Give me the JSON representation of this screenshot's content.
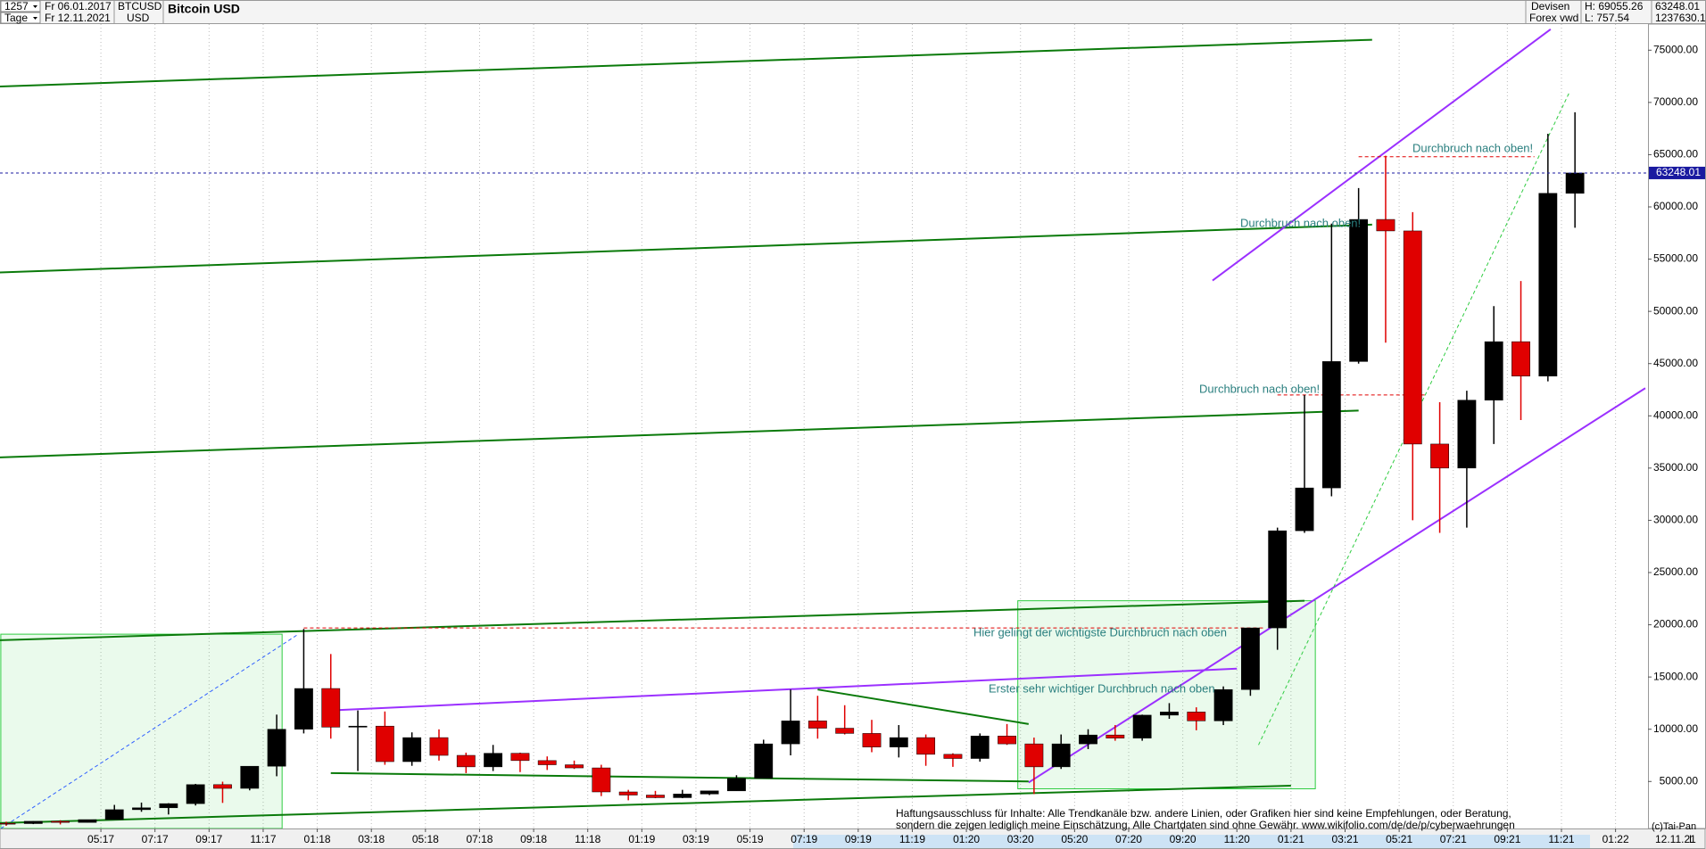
{
  "header": {
    "count": "1257",
    "from": "Fr 06.01.2017",
    "period": "Tage",
    "to": "Fr 12.11.2021",
    "symbol": "BTCUSD",
    "currency": "USD",
    "market": "Devisen",
    "source": "Forex vwd",
    "high": "H: 69055.26",
    "low": "L: 757.54",
    "last": "63248.01",
    "volume": "1237630.1"
  },
  "footer": {
    "copyright": "(c)Tai-Pan",
    "date": "12.11.21",
    "scale": "L"
  },
  "chart_data": {
    "type": "candlestick",
    "title": "Bitcoin USD",
    "x": [
      0,
      1,
      2,
      3,
      4,
      5,
      6,
      7,
      8,
      9,
      10,
      11,
      12,
      13,
      14,
      15,
      16,
      17,
      18,
      19,
      20,
      21,
      22,
      23,
      24,
      25,
      26,
      27,
      28,
      29,
      30,
      31,
      32,
      33,
      34,
      35,
      36,
      37,
      38,
      39,
      40,
      41,
      42,
      43,
      44,
      45,
      46,
      47,
      48,
      49,
      50,
      51,
      52,
      53,
      54,
      55,
      56,
      57,
      58
    ],
    "open": [
      1000,
      970,
      1190,
      1080,
      1350,
      2300,
      2480,
      2880,
      4700,
      4340,
      6460,
      10000,
      13900,
      10200,
      10300,
      6900,
      9200,
      7500,
      6400,
      7700,
      7000,
      6600,
      6300,
      4000,
      3700,
      3450,
      3800,
      4100,
      5300,
      8600,
      10800,
      10100,
      9600,
      8300,
      9200,
      7600,
      7200,
      9350,
      8600,
      6400,
      8600,
      9450,
      9150,
      11350,
      11650,
      10800,
      13800,
      19700,
      29000,
      33100,
      45200,
      58800,
      57700,
      37300,
      35000,
      41500,
      47100,
      43800,
      61300
    ],
    "high": [
      1150,
      1200,
      1290,
      1350,
      2760,
      2980,
      2920,
      4770,
      4980,
      6450,
      11400,
      19600,
      17200,
      11800,
      11700,
      9700,
      9990,
      7760,
      8500,
      7760,
      7400,
      7000,
      6600,
      4200,
      4100,
      4200,
      4100,
      5600,
      9000,
      13800,
      13200,
      12300,
      10900,
      10400,
      9500,
      7700,
      9600,
      10500,
      9200,
      9500,
      10000,
      10400,
      11400,
      12500,
      12100,
      14100,
      19500,
      29300,
      42000,
      58400,
      61800,
      64900,
      59500,
      41300,
      42400,
      50500,
      52900,
      67000,
      69055.26
    ],
    "low": [
      760,
      920,
      890,
      1060,
      1350,
      2100,
      1840,
      2700,
      2950,
      4150,
      5500,
      9600,
      9100,
      6000,
      6600,
      6500,
      7000,
      5800,
      6000,
      5900,
      6100,
      6200,
      3600,
      3200,
      3400,
      3400,
      3700,
      4100,
      5300,
      7500,
      9100,
      9500,
      7800,
      7300,
      6500,
      6400,
      6900,
      8500,
      3800,
      6200,
      8100,
      8900,
      8900,
      11000,
      9900,
      10400,
      13200,
      17600,
      28800,
      32300,
      45000,
      47000,
      30000,
      28800,
      29300,
      37300,
      39600,
      43300,
      58000
    ],
    "close": [
      970,
      1190,
      1080,
      1350,
      2300,
      2480,
      2880,
      4700,
      4340,
      6460,
      10000,
      13900,
      10200,
      10300,
      6900,
      9200,
      7500,
      6400,
      7700,
      7000,
      6600,
      6300,
      4000,
      3700,
      3450,
      3800,
      4100,
      5300,
      8600,
      10800,
      10100,
      9600,
      8300,
      9200,
      7600,
      7200,
      9350,
      8600,
      6400,
      8600,
      9450,
      9150,
      11350,
      11650,
      10800,
      13800,
      19700,
      29000,
      33100,
      45200,
      58800,
      57700,
      37300,
      35000,
      41500,
      47100,
      43800,
      61300,
      63248.01
    ],
    "up_color": "#000000",
    "down_color": "#e00000",
    "xlim": [
      0.27,
      61.2
    ],
    "xticks": [
      {
        "value": 4,
        "label": "05:17"
      },
      {
        "value": 6,
        "label": "07:17"
      },
      {
        "value": 8,
        "label": "09:17"
      },
      {
        "value": 10,
        "label": "11:17"
      },
      {
        "value": 12,
        "label": "01:18"
      },
      {
        "value": 14,
        "label": "03:18"
      },
      {
        "value": 16,
        "label": "05:18"
      },
      {
        "value": 18,
        "label": "07:18"
      },
      {
        "value": 20,
        "label": "09:18"
      },
      {
        "value": 22,
        "label": "11:18"
      },
      {
        "value": 24,
        "label": "01:19"
      },
      {
        "value": 26,
        "label": "03:19"
      },
      {
        "value": 28,
        "label": "05:19"
      },
      {
        "value": 30,
        "label": "07:19"
      },
      {
        "value": 32,
        "label": "09:19"
      },
      {
        "value": 34,
        "label": "11:19"
      },
      {
        "value": 36,
        "label": "01:20"
      },
      {
        "value": 38,
        "label": "03:20"
      },
      {
        "value": 40,
        "label": "05:20"
      },
      {
        "value": 42,
        "label": "07:20"
      },
      {
        "value": 44,
        "label": "09:20"
      },
      {
        "value": 46,
        "label": "11:20"
      },
      {
        "value": 48,
        "label": "01:21"
      },
      {
        "value": 50,
        "label": "03:21"
      },
      {
        "value": 52,
        "label": "05:21"
      },
      {
        "value": 54,
        "label": "07:21"
      },
      {
        "value": 56,
        "label": "09:21"
      },
      {
        "value": 58,
        "label": "11:21"
      },
      {
        "value": 60,
        "label": "01:22"
      }
    ],
    "ylim": [
      500,
      77500
    ],
    "yticks": [
      {
        "value": 5000,
        "label": "5000.00"
      },
      {
        "value": 10000,
        "label": "10000.00"
      },
      {
        "value": 15000,
        "label": "15000.00"
      },
      {
        "value": 20000,
        "label": "20000.00"
      },
      {
        "value": 25000,
        "label": "25000.00"
      },
      {
        "value": 30000,
        "label": "30000.00"
      },
      {
        "value": 35000,
        "label": "35000.00"
      },
      {
        "value": 40000,
        "label": "40000.00"
      },
      {
        "value": 45000,
        "label": "45000.00"
      },
      {
        "value": 50000,
        "label": "50000.00"
      },
      {
        "value": 55000,
        "label": "55000.00"
      },
      {
        "value": 60000,
        "label": "60000.00"
      },
      {
        "value": 65000,
        "label": "65000.00"
      },
      {
        "value": 70000,
        "label": "70000.00"
      },
      {
        "value": 75000,
        "label": "75000.00"
      }
    ],
    "grid": true,
    "last_price": 63248.01,
    "last_color": "#1a1aa0",
    "zones": [
      {
        "color": "#2ecc40",
        "x": [
          0.3,
          10.7
        ],
        "y": [
          500,
          19100
        ]
      },
      {
        "color": "#2ecc40",
        "x": [
          37.9,
          48.9
        ],
        "y": [
          4300,
          22300
        ]
      }
    ],
    "trendlines": [
      {
        "color": "#0a7a0a",
        "dashed": false,
        "x": [
          0,
          51
        ],
        "y": [
          71500,
          76000
        ]
      },
      {
        "color": "#0a7a0a",
        "dashed": false,
        "x": [
          0,
          51
        ],
        "y": [
          53700,
          58300
        ]
      },
      {
        "color": "#0a7a0a",
        "dashed": false,
        "x": [
          0,
          50.5
        ],
        "y": [
          36000,
          40500
        ]
      },
      {
        "color": "#0a7a0a",
        "dashed": false,
        "x": [
          0,
          48.5
        ],
        "y": [
          18500,
          22300
        ]
      },
      {
        "color": "#0a7a0a",
        "dashed": false,
        "x": [
          0,
          48
        ],
        "y": [
          1000,
          4600
        ]
      },
      {
        "color": "#9b30ff",
        "dashed": false,
        "x": [
          45.1,
          57.6
        ],
        "y": [
          52950,
          77000
        ]
      },
      {
        "color": "#9b30ff",
        "dashed": false,
        "x": [
          38.3,
          61.1
        ],
        "y": [
          4900,
          42650
        ]
      },
      {
        "color": "#9b30ff",
        "dashed": false,
        "x": [
          12.5,
          46
        ],
        "y": [
          11800,
          15800
        ]
      },
      {
        "color": "#0a7a0a",
        "dashed": false,
        "x": [
          30.5,
          38.3
        ],
        "y": [
          13800,
          10500
        ]
      },
      {
        "color": "#0a7a0a",
        "dashed": false,
        "x": [
          12.5,
          38.3
        ],
        "y": [
          5800,
          5000
        ]
      },
      {
        "color": "#e00000",
        "dashed": true,
        "x": [
          11.5,
          47
        ],
        "y": [
          19700,
          19700
        ]
      },
      {
        "color": "#e00000",
        "dashed": true,
        "x": [
          50.5,
          57
        ],
        "y": [
          64800,
          64800
        ]
      },
      {
        "color": "#e00000",
        "dashed": true,
        "x": [
          47.5,
          53
        ],
        "y": [
          42000,
          42000
        ]
      },
      {
        "color": "#2ecc40",
        "dashed": true,
        "x": [
          46.8,
          58.3
        ],
        "y": [
          8500,
          71000
        ]
      },
      {
        "color": "#3060ff",
        "dashed": true,
        "x": [
          0.3,
          11.3
        ],
        "y": [
          500,
          19100
        ]
      }
    ],
    "annotations": [
      "Durchbruch nach oben!",
      "Durchbruch nach oben!",
      "Durchbruch nach oben!",
      "Hier gelingt der wichtigste Durchbruch nach oben",
      "Erster sehr wichtiger Durchbruch nach oben"
    ],
    "disclaimer": [
      "Haftungsausschluss für Inhalte: Alle Trendkanäle bzw. andere Linien, oder Grafiken hier sind keine Empfehlungen, oder Beratung,",
      "sondern die zeigen lediglich meine  Einschätzung. Alle Chartdaten sind ohne Gewähr.  www.wikifolio.com/de/de/p/cyberwaehrungen"
    ]
  }
}
